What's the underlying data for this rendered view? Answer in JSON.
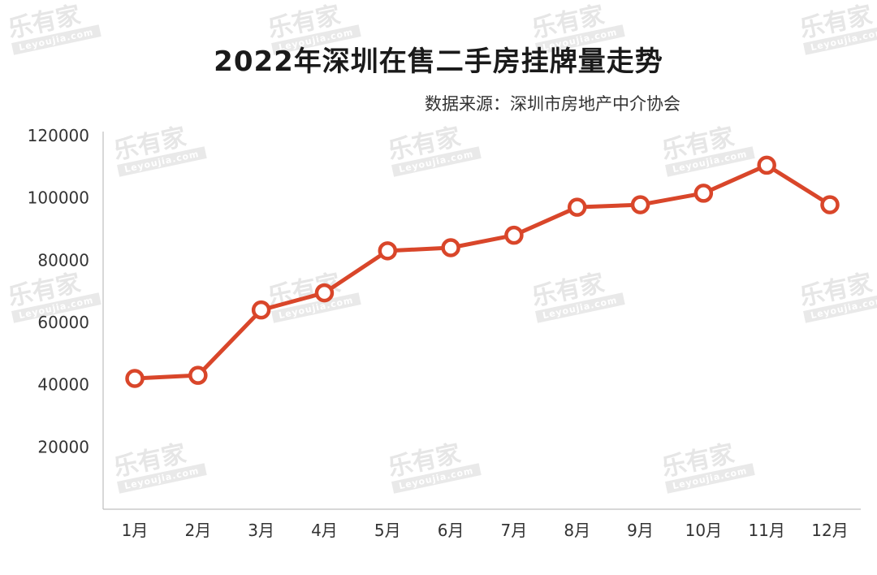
{
  "watermark": {
    "text": "乐有家",
    "sub": "Leyoujia.com"
  },
  "chart_data": {
    "type": "line",
    "title": "2022年深圳在售二手房挂牌量走势",
    "source": "数据来源：深圳市房地产中介协会",
    "categories": [
      "1月",
      "2月",
      "3月",
      "4月",
      "5月",
      "6月",
      "7月",
      "8月",
      "9月",
      "10月",
      "11月",
      "12月"
    ],
    "series": [
      {
        "values": [
          42000,
          43000,
          64000,
          69500,
          83000,
          84000,
          88000,
          97000,
          97800,
          101500,
          110500,
          97800
        ]
      }
    ],
    "ylim": [
      0,
      120000
    ],
    "yticks": [
      20000,
      40000,
      60000,
      80000,
      100000,
      120000
    ],
    "xlabel": "",
    "ylabel": "",
    "grid": false,
    "colors": {
      "line": "#d9462a",
      "marker_fill": "#ffffff",
      "axis": "#bfbfbf"
    }
  }
}
